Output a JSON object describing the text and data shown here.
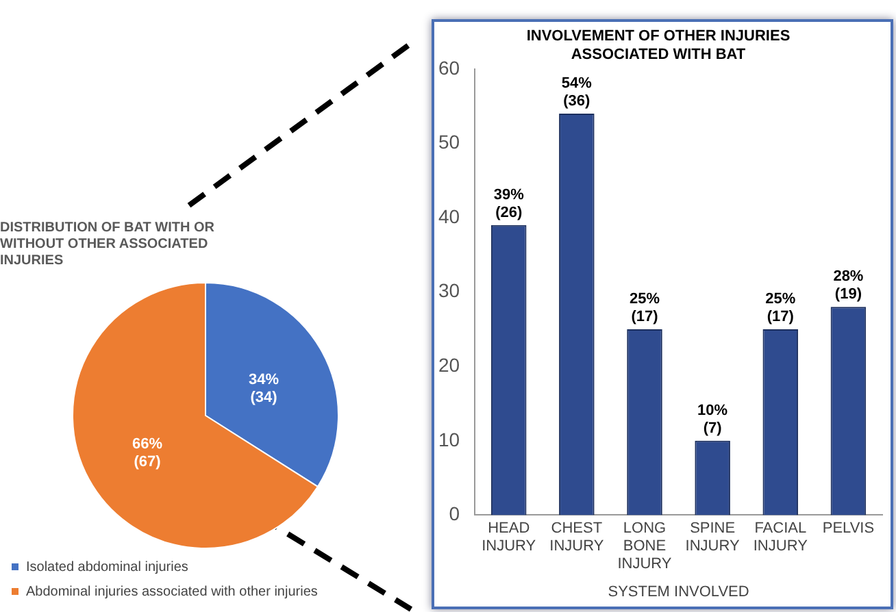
{
  "chart_data": [
    {
      "type": "pie",
      "title": "DISTRIBUTION OF BAT WITH OR WITHOUT OTHER ASSOCIATED INJURIES",
      "categories": [
        "Isolated abdominal injuries",
        "Abdominal injuries associated with other injuries"
      ],
      "values": [
        34,
        66
      ],
      "colors": [
        "#4472c4",
        "#ed7d31"
      ],
      "value_labels": [
        "34%\n(34)",
        "66%\n(67)"
      ],
      "legend": "bottom"
    },
    {
      "type": "bar",
      "title": "INVOLVEMENT OF OTHER INJURIES ASSOCIATED WITH BAT",
      "categories": [
        "HEAD INJURY",
        "CHEST INJURY",
        "LONG BONE INJURY",
        "SPINE INJURY",
        "FACIAL INJURY",
        "PELVIS"
      ],
      "values": [
        39,
        54,
        25,
        10,
        25,
        28
      ],
      "color": "#2f4b8f",
      "value_labels": [
        "39%\n(26)",
        "54%\n(36)",
        "25%\n(17)",
        "10%\n(7)",
        "25%\n(17)",
        "28%\n(19)"
      ],
      "xlabel": "SYSTEM INVOLVED",
      "ylim": [
        0,
        60
      ],
      "yticks": [
        0,
        10,
        20,
        30,
        40,
        50,
        60
      ]
    }
  ]
}
